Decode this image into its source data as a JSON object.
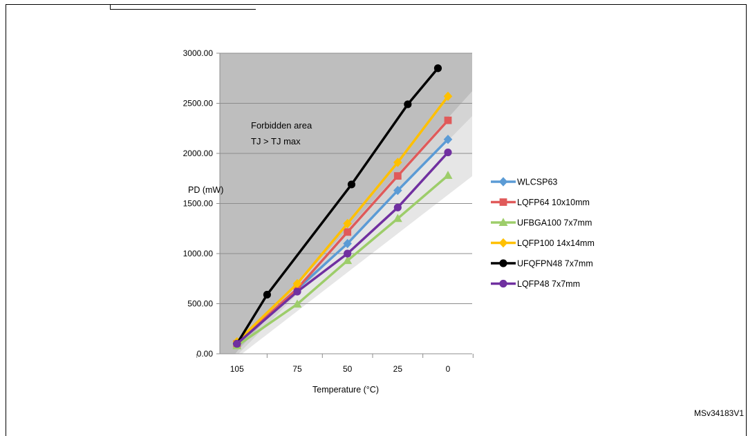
{
  "chart_data": {
    "type": "line",
    "ylabel": "PD (mW)",
    "xlabel": "Temperature (°C)",
    "x_ticks": [
      "105",
      "75",
      "50",
      "25",
      "0"
    ],
    "y_ticks": [
      "0.00",
      "500.00",
      "1000.00",
      "1500.00",
      "2000.00",
      "2500.00",
      "3000.00"
    ],
    "xlim": [
      125,
      -15
    ],
    "ylim": [
      0,
      3000
    ],
    "grid": "horizontal",
    "legend_position": "right",
    "annotation": [
      "Forbidden area",
      "TJ > TJ max"
    ],
    "series": [
      {
        "name": "WLCSP63",
        "color": "#5b9bd5",
        "marker": "diamond",
        "x": [
          105,
          50,
          25,
          0
        ],
        "y": [
          100,
          1100,
          1630,
          2140
        ]
      },
      {
        "name": "LQFP64 10x10mm",
        "color": "#e05a5a",
        "marker": "square",
        "x": [
          105,
          75,
          50,
          25,
          0
        ],
        "y": [
          100,
          650,
          1215,
          1775,
          2330
        ]
      },
      {
        "name": "UFBGA100 7x7mm",
        "color": "#9dcd6a",
        "marker": "triangle",
        "x": [
          105,
          75,
          50,
          25,
          0
        ],
        "y": [
          80,
          495,
          930,
          1350,
          1780
        ]
      },
      {
        "name": "LQFP100 14x14mm",
        "color": "#ffc000",
        "marker": "diamond",
        "x": [
          105,
          75,
          50,
          25,
          0
        ],
        "y": [
          120,
          700,
          1300,
          1910,
          2570
        ]
      },
      {
        "name": "UFQFPN48 7x7mm",
        "color": "#000000",
        "marker": "circle",
        "x": [
          105,
          90,
          48,
          20,
          5
        ],
        "y": [
          100,
          590,
          1690,
          2490,
          2850
        ]
      },
      {
        "name": "LQFP48 7x7mm",
        "color": "#7030a0",
        "marker": "circle",
        "x": [
          105,
          75,
          50,
          25,
          0
        ],
        "y": [
          100,
          620,
          1000,
          1460,
          2010
        ]
      }
    ]
  },
  "figure_id": "MSv34183V1"
}
